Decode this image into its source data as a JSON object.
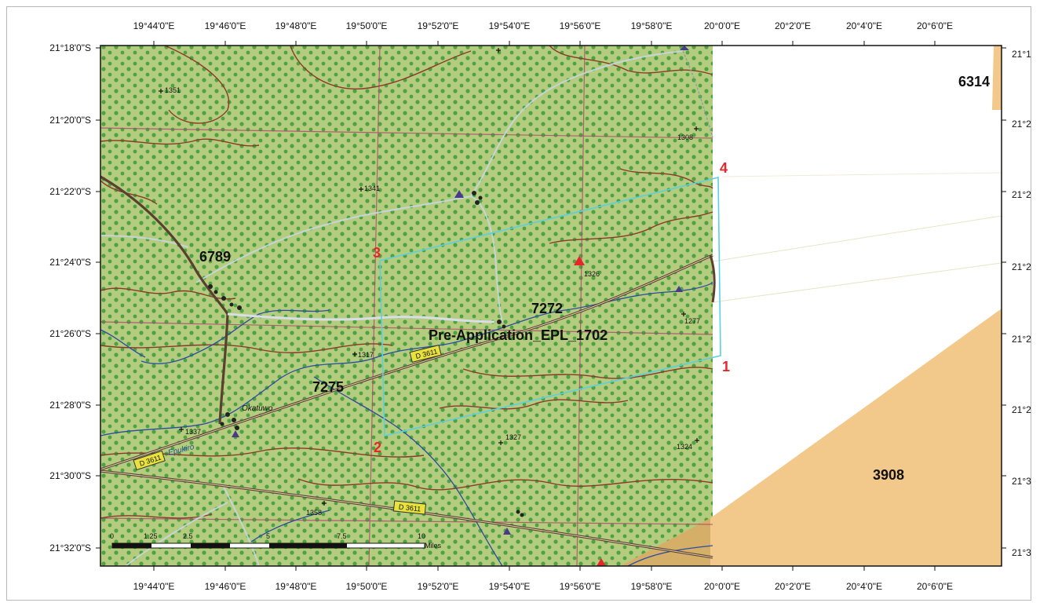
{
  "map": {
    "longitude_ticks": [
      "19°44'0\"E",
      "19°46'0\"E",
      "19°48'0\"E",
      "19°50'0\"E",
      "19°52'0\"E",
      "19°54'0\"E",
      "19°56'0\"E",
      "19°58'0\"E",
      "20°0'0\"E",
      "20°2'0\"E",
      "20°4'0\"E",
      "20°6'0\"E"
    ],
    "latitude_ticks": [
      "21°18'0\"S",
      "21°20'0\"S",
      "21°22'0\"S",
      "21°24'0\"S",
      "21°26'0\"S",
      "21°28'0\"S",
      "21°30'0\"S",
      "21°32'0\"S"
    ],
    "right_ticks": [
      "21°1",
      "21°2",
      "21°2",
      "21°2",
      "21°2",
      "21°2",
      "21°3",
      "21°3"
    ],
    "licence_labels": {
      "a": "6789",
      "b": "7272",
      "c": "7275",
      "d": "6314",
      "e": "3908"
    },
    "application_label": "Pre-Application_EPL_1702",
    "corner_labels": [
      "1",
      "2",
      "3",
      "4"
    ],
    "place_labels": {
      "okatuwo": "Okatuwo",
      "epukiro": "Epukiro"
    },
    "road_labels": [
      "D 3611",
      "D 3611",
      "D 3611"
    ],
    "spot_heights": [
      "1351",
      "1308",
      "1341",
      "1326",
      "1277",
      "1317",
      "1337",
      "1327",
      "1324",
      "1358"
    ],
    "scale_bar": {
      "labels": [
        "0",
        "1.25",
        "2.5",
        "5",
        "7.5",
        "10"
      ],
      "unit": "Miles"
    },
    "colors": {
      "map_background": "#b3cc7e",
      "vegetation_dots": "#3d9a3a",
      "contour": "#8b3a2a",
      "grid_line": "#b0456a",
      "road": "#5a4030",
      "river": "#2b4da0",
      "application_boundary": "#5ad0e0",
      "adjacent_licence": "#f2c98a",
      "corner_number": "#e8262a"
    }
  }
}
